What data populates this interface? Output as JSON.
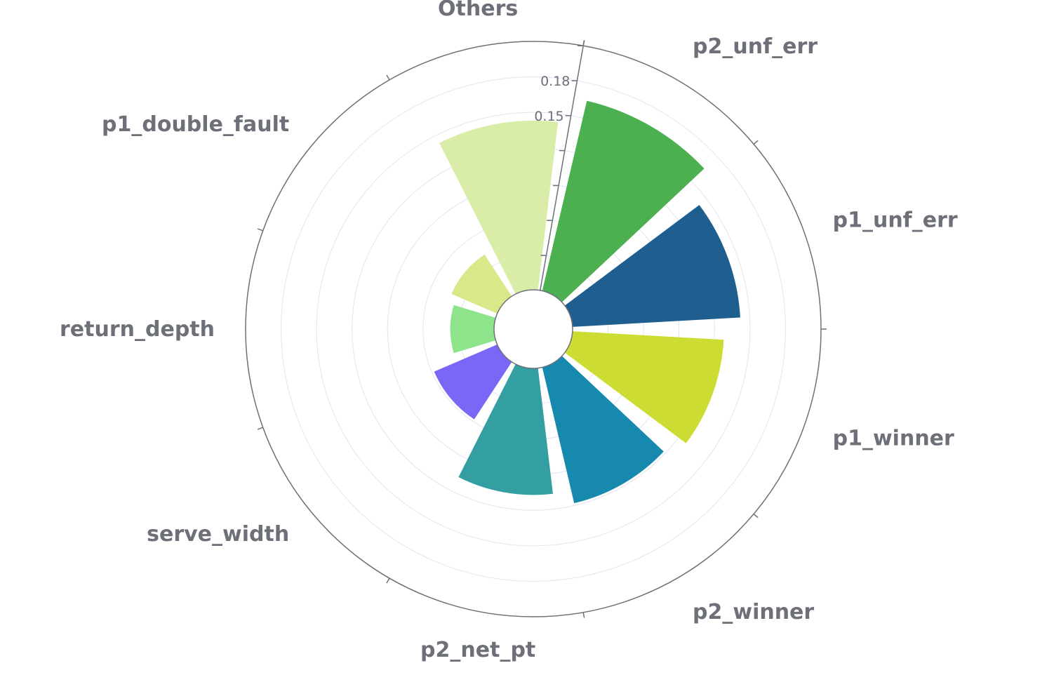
{
  "chart_data": {
    "type": "bar",
    "subtype": "polar-bar",
    "categories": [
      "p2_unf_err",
      "p1_unf_err",
      "p1_winner",
      "p2_winner",
      "p2_net_pt",
      "serve_width",
      "return_depth",
      "p1_double_fault",
      "Others"
    ],
    "values": [
      0.165,
      0.142,
      0.128,
      0.118,
      0.107,
      0.058,
      0.037,
      0.042,
      0.143
    ],
    "colors": [
      "#4caf50",
      "#1f5f8f",
      "#cddc32",
      "#1889ae",
      "#349fa2",
      "#7a67f5",
      "#8ee48a",
      "#dae88a",
      "#d9eda8"
    ],
    "radial_ticks": [
      "0.18",
      "0.15"
    ],
    "rlim": [
      0,
      0.21
    ],
    "grid": true,
    "legend": "none"
  }
}
